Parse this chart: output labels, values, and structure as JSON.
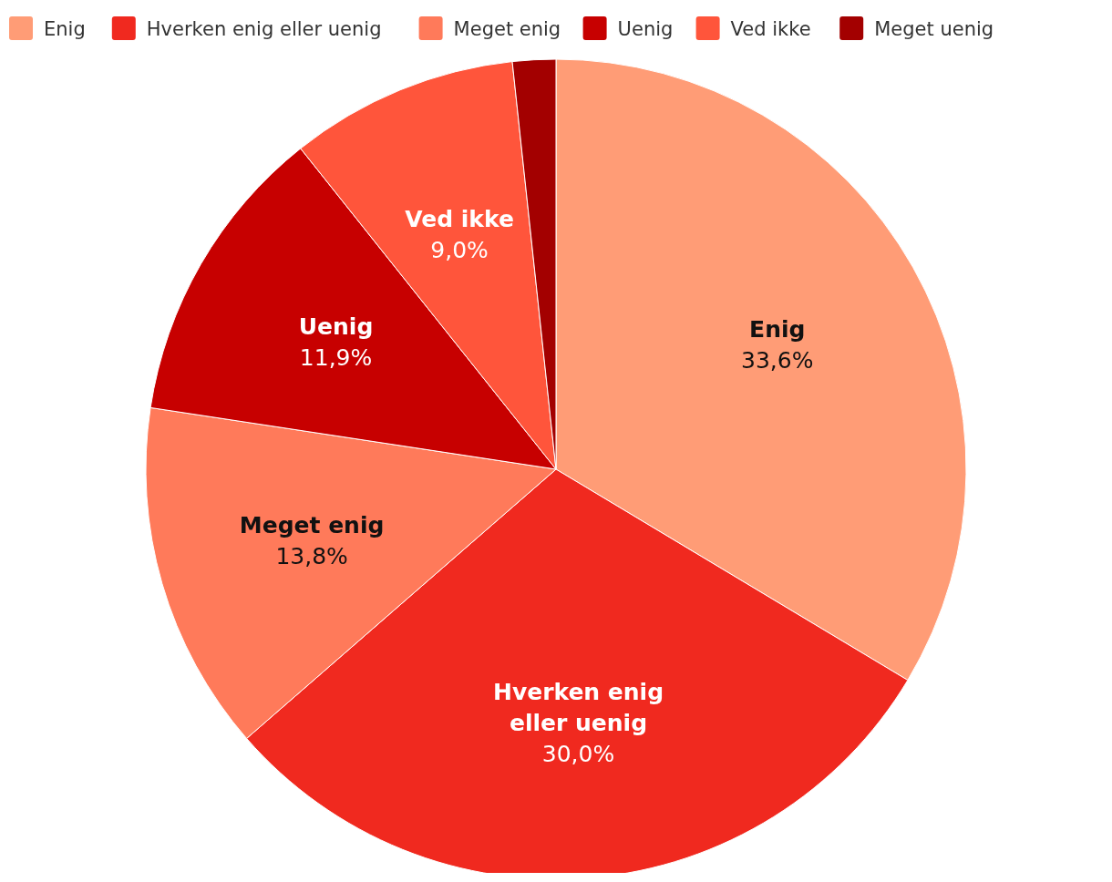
{
  "chart_data": {
    "type": "pie",
    "categories": [
      "Enig",
      "Hverken enig eller uenig",
      "Meget enig",
      "Uenig",
      "Ved ikke",
      "Meget uenig"
    ],
    "values": [
      33.6,
      30.0,
      13.8,
      11.9,
      9.0,
      1.7
    ],
    "colors": [
      "#ff9c76",
      "#f0291f",
      "#ff7a5a",
      "#c70000",
      "#ff553b",
      "#a30000"
    ],
    "value_labels": [
      "33,6%",
      "30,0%",
      "13,8%",
      "11,9%",
      "9,0%",
      null
    ],
    "legend": "top"
  }
}
